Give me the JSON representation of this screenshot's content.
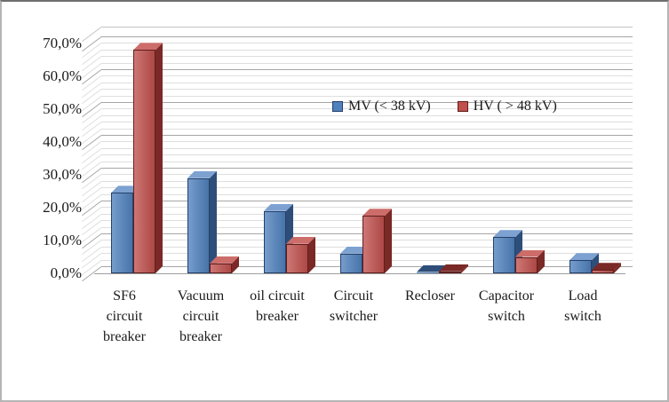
{
  "window": {
    "background": "#ffffff",
    "border_color": "#b5b5b5"
  },
  "chart_data": {
    "type": "bar",
    "style": "3d-clustered-column",
    "title": "",
    "xlabel": "",
    "ylabel": "",
    "categories": [
      "SF6\ncircuit\nbreaker",
      "Vacuum\ncircuit\nbreaker",
      "oil circuit\nbreaker",
      "Circuit\nswitcher",
      "Recloser",
      "Capacitor\nswitch",
      "Load\nswitch"
    ],
    "series": [
      {
        "name": "MV (< 38 kV)",
        "values": [
          24.5,
          29,
          19,
          6,
          0.4,
          11,
          4
        ],
        "color": "#4F81BD",
        "color_top": "#7DA1D1",
        "color_side": "#2D4E79",
        "color_edge": "#24406B"
      },
      {
        "name": "HV ( > 48 kV)",
        "values": [
          68,
          3,
          9,
          17.5,
          0.6,
          5,
          1
        ],
        "color": "#C0504D",
        "color_top": "#CD6D6A",
        "color_side": "#7A2926",
        "color_edge": "#5E1F1D"
      }
    ],
    "ylim": [
      0,
      70
    ],
    "y_major_step": 10,
    "y_minor_step": 2,
    "y_tick_labels": [
      "0,0%",
      "10,0%",
      "20,0%",
      "30,0%",
      "40,0%",
      "50,0%",
      "60,0%",
      "70,0%"
    ],
    "grid": {
      "major_color": "#A6A6A6",
      "minor_color": "#DEDEDE",
      "minor_visible": true,
      "wall_top_color": "#C4C4C4",
      "floor_edge_color": "#9E9E9E"
    },
    "legend_position": "inside-upper-center",
    "axis_text_color": "#1A1A1A"
  }
}
